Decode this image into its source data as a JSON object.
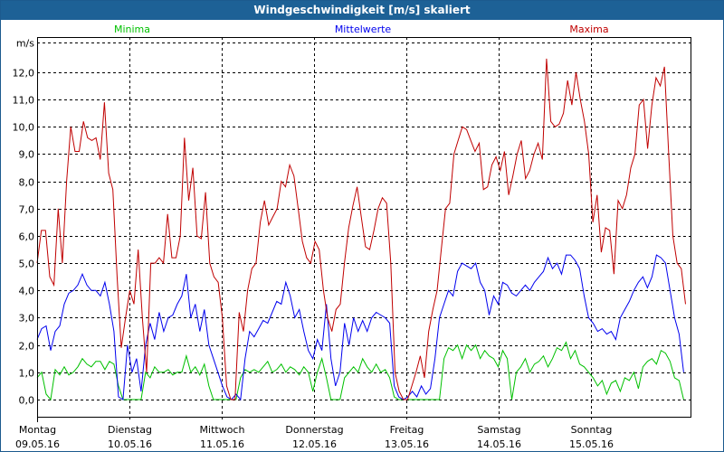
{
  "window": {
    "title": "Windgeschwindigkeit [m/s] skaliert"
  },
  "chart_data": {
    "type": "line",
    "title": "Windgeschwindigkeit [m/s] skaliert",
    "ylabel": "m/s",
    "ylim": [
      0,
      13.1
    ],
    "y_ticks": [
      "0,0",
      "1,0",
      "2,0",
      "3,0",
      "4,0",
      "5,0",
      "6,0",
      "7,0",
      "8,0",
      "9,0",
      "10,0",
      "11,0",
      "12,0"
    ],
    "y_tick_values": [
      0,
      1,
      2,
      3,
      4,
      5,
      6,
      7,
      8,
      9,
      10,
      11,
      12
    ],
    "x_unit": "hours",
    "xlim": [
      0,
      170
    ],
    "grid": true,
    "x_ticks": [
      {
        "hour": 0,
        "day": "Montag",
        "date": "09.05.16"
      },
      {
        "hour": 24,
        "day": "Dienstag",
        "date": "10.05.16"
      },
      {
        "hour": 48,
        "day": "Mittwoch",
        "date": "11.05.16"
      },
      {
        "hour": 72,
        "day": "Donnerstag",
        "date": "12.05.16"
      },
      {
        "hour": 96,
        "day": "Freitag",
        "date": "13.05.16"
      },
      {
        "hour": 120,
        "day": "Samstag",
        "date": "14.05.16"
      },
      {
        "hour": 144,
        "day": "Sonntag",
        "date": "15.05.16"
      }
    ],
    "series": [
      {
        "name": "Minima",
        "color": "#00c000",
        "hours_start": 0,
        "hours_end": 168.2,
        "values": [
          0.8,
          1.0,
          0.2,
          0.0,
          1.1,
          0.9,
          1.2,
          0.9,
          1.0,
          1.2,
          1.5,
          1.3,
          1.2,
          1.4,
          1.4,
          1.1,
          1.4,
          1.3,
          0.5,
          0.0,
          0.0,
          0.0,
          0.0,
          0.0,
          1.0,
          0.8,
          1.2,
          1.0,
          1.0,
          1.1,
          0.9,
          1.0,
          1.0,
          1.6,
          1.0,
          1.2,
          0.9,
          1.3,
          0.5,
          0.0,
          0.0,
          0.0,
          0.0,
          0.0,
          0.0,
          0.8,
          1.1,
          1.0,
          1.1,
          1.0,
          1.2,
          1.4,
          1.0,
          1.1,
          1.3,
          1.0,
          1.2,
          1.1,
          0.9,
          1.2,
          1.0,
          0.3,
          1.0,
          1.5,
          0.8,
          0.0,
          0.0,
          0.0,
          0.8,
          1.0,
          1.2,
          1.0,
          1.5,
          1.2,
          1.0,
          1.3,
          1.0,
          1.1,
          0.8,
          0.1,
          0.0,
          0.0,
          0.0,
          0.0,
          0.0,
          0.0,
          0.0,
          0.0,
          0.0,
          0.0,
          1.5,
          1.9,
          1.8,
          2.0,
          1.5,
          2.0,
          1.8,
          2.0,
          1.5,
          1.8,
          1.6,
          1.5,
          1.2,
          1.8,
          1.5,
          0.0,
          1.0,
          1.2,
          1.5,
          1.0,
          1.3,
          1.4,
          1.6,
          1.2,
          1.5,
          1.9,
          1.8,
          2.1,
          1.5,
          1.8,
          1.3,
          1.2,
          1.0,
          0.8,
          0.5,
          0.7,
          0.2,
          0.6,
          0.7,
          0.3,
          0.8,
          0.7,
          1.0,
          0.4,
          1.2,
          1.4,
          1.5,
          1.3,
          1.8,
          1.7,
          1.4,
          0.8,
          0.7,
          0.0
        ]
      },
      {
        "name": "Mittelwerte",
        "color": "#0000ee",
        "hours_start": 0,
        "hours_end": 168.2,
        "values": [
          2.2,
          2.6,
          2.7,
          1.8,
          2.5,
          2.7,
          3.5,
          3.9,
          4.0,
          4.2,
          4.6,
          4.2,
          4.0,
          4.0,
          3.8,
          4.3,
          3.5,
          2.5,
          0.1,
          0.0,
          2.0,
          1.0,
          1.5,
          0.3,
          2.0,
          2.8,
          2.2,
          3.2,
          2.5,
          3.0,
          3.1,
          3.5,
          3.8,
          4.6,
          3.0,
          3.5,
          2.5,
          3.3,
          2.0,
          1.5,
          1.0,
          0.5,
          0.1,
          0.0,
          0.2,
          0.0,
          1.5,
          2.5,
          2.3,
          2.6,
          2.9,
          2.8,
          3.2,
          3.6,
          3.5,
          4.3,
          3.8,
          3.0,
          3.3,
          2.5,
          1.8,
          1.5,
          2.2,
          1.8,
          3.5,
          1.5,
          0.5,
          1.0,
          2.8,
          2.0,
          3.0,
          2.5,
          2.9,
          2.5,
          3.0,
          3.2,
          3.1,
          3.0,
          2.8,
          0.5,
          0.1,
          0.0,
          0.1,
          0.3,
          0.1,
          0.5,
          0.2,
          0.4,
          1.5,
          3.0,
          3.5,
          4.0,
          3.8,
          4.7,
          5.0,
          4.9,
          4.8,
          5.0,
          4.3,
          4.0,
          3.1,
          3.8,
          3.5,
          4.3,
          4.2,
          3.9,
          3.8,
          4.0,
          4.2,
          4.0,
          4.3,
          4.5,
          4.7,
          5.2,
          4.8,
          5.0,
          4.6,
          5.3,
          5.3,
          5.1,
          4.8,
          3.8,
          3.0,
          2.8,
          2.5,
          2.6,
          2.4,
          2.5,
          2.2,
          3.0,
          3.3,
          3.6,
          4.0,
          4.3,
          4.5,
          4.1,
          4.5,
          5.3,
          5.2,
          5.0,
          4.0,
          3.0,
          2.4,
          1.0
        ]
      },
      {
        "name": "Maxima",
        "color": "#c00000",
        "hours_start": 0,
        "hours_end": 168.7,
        "values": [
          5.0,
          6.2,
          6.2,
          4.5,
          4.2,
          7.0,
          5.0,
          8.0,
          10.0,
          9.1,
          9.1,
          10.2,
          9.6,
          9.5,
          9.6,
          8.8,
          10.9,
          8.3,
          7.7,
          4.5,
          1.9,
          3.0,
          4.0,
          3.5,
          5.5,
          3.0,
          1.0,
          5.0,
          5.0,
          5.2,
          5.0,
          6.8,
          5.2,
          5.2,
          6.0,
          9.6,
          7.3,
          8.5,
          6.0,
          5.9,
          7.6,
          5.0,
          4.5,
          4.3,
          3.0,
          0.5,
          0.0,
          0.0,
          3.2,
          2.5,
          4.0,
          4.8,
          5.0,
          6.5,
          7.3,
          6.4,
          6.7,
          7.0,
          8.0,
          7.8,
          8.6,
          8.2,
          7.0,
          5.8,
          5.2,
          5.0,
          5.8,
          5.5,
          4.0,
          3.0,
          2.5,
          3.3,
          3.5,
          5.0,
          6.3,
          7.1,
          7.8,
          6.7,
          5.6,
          5.5,
          6.2,
          7.0,
          7.4,
          7.2,
          5.0,
          1.0,
          0.3,
          0.0,
          0.0,
          0.5,
          1.0,
          1.6,
          0.8,
          2.5,
          3.3,
          4.0,
          5.5,
          7.0,
          7.2,
          9.0,
          9.5,
          10.0,
          9.9,
          9.5,
          9.1,
          9.4,
          7.7,
          7.8,
          8.6,
          8.9,
          8.4,
          9.1,
          7.5,
          8.2,
          9.0,
          9.5,
          8.1,
          8.4,
          9.0,
          9.4,
          8.8,
          12.5,
          10.2,
          10.0,
          10.1,
          10.5,
          11.7,
          10.8,
          12.0,
          11.0,
          10.2,
          9.0,
          6.5,
          7.5,
          5.4,
          6.3,
          6.2,
          4.6,
          7.3,
          7.0,
          7.5,
          8.5,
          9.0,
          10.8,
          11.0,
          9.2,
          10.8,
          11.8,
          11.5,
          12.2,
          9.0,
          6.0,
          5.0,
          4.8,
          3.5
        ]
      }
    ]
  }
}
